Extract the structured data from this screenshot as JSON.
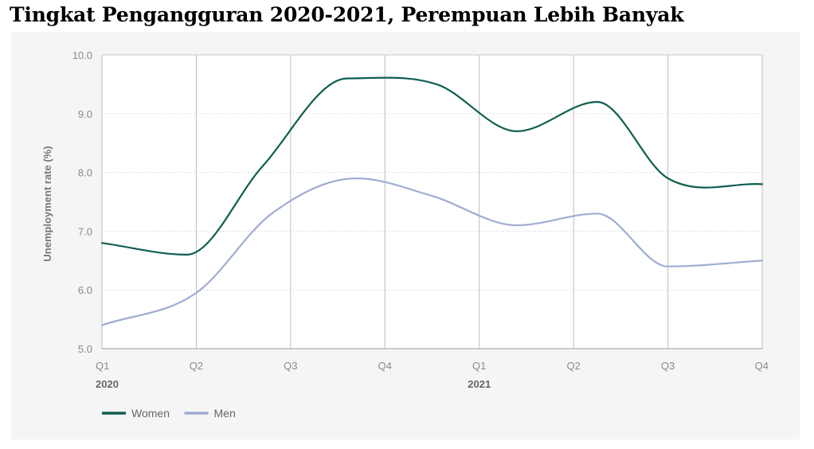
{
  "document": {
    "title": "Tingkat Pengangguran 2020-2021, Perempuan Lebih Banyak"
  },
  "chart_data": {
    "type": "line",
    "categories": [
      "Q1",
      "Q2",
      "Q3",
      "Q4",
      "Q1",
      "Q2",
      "Q3",
      "Q4"
    ],
    "years": [
      {
        "label": "2020",
        "index": 0
      },
      {
        "label": "2021",
        "index": 4
      }
    ],
    "ylabel": "Unemployment rate (%)",
    "xlabel": "",
    "ylim": [
      5.0,
      10.0
    ],
    "yticks": [
      "5.0",
      "6.0",
      "7.0",
      "8.0",
      "9.0",
      "10.0"
    ],
    "grid": {
      "vertical": true,
      "horizontal": "dotted"
    },
    "legend": "bottom-left",
    "series": [
      {
        "name": "Women",
        "color": "#0f5e52",
        "points": [
          [
            0,
            6.8
          ],
          [
            0.9,
            6.6
          ],
          [
            1.7,
            8.1
          ],
          [
            2.6,
            9.6
          ],
          [
            3.55,
            9.5
          ],
          [
            4.4,
            8.7
          ],
          [
            5.25,
            9.2
          ],
          [
            6.0,
            7.9
          ],
          [
            7.0,
            7.8
          ]
        ]
      },
      {
        "name": "Men",
        "color": "#a0acd2",
        "points": [
          [
            0,
            5.4
          ],
          [
            1.0,
            5.95
          ],
          [
            1.8,
            7.3
          ],
          [
            2.7,
            7.9
          ],
          [
            3.5,
            7.6
          ],
          [
            4.4,
            7.1
          ],
          [
            5.25,
            7.3
          ],
          [
            6.0,
            6.4
          ],
          [
            7.0,
            6.5
          ]
        ]
      }
    ]
  }
}
